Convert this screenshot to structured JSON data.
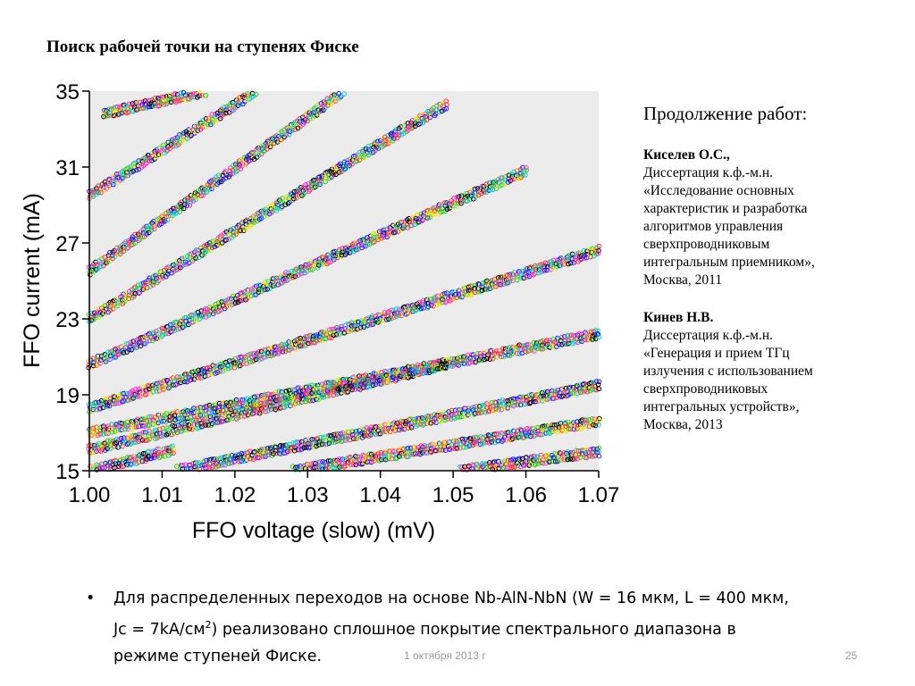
{
  "slide": {
    "title": "Поиск рабочей точки на ступенях Фиске",
    "footer_date": "1 октября 2013 г",
    "page_number": "25"
  },
  "sidebar": {
    "heading": "Продолжение работ:",
    "works": [
      {
        "author": "Киселев О.С.,",
        "lines": [
          "Диссертация к.ф.-м.н.",
          "«Исследование основных",
          "характеристик и разработка",
          "алгоритмов управления",
          "сверхпроводниковым",
          "интегральным приемником»,",
          "Москва, 2011"
        ]
      },
      {
        "author": "Кинев Н.В.",
        "lines": [
          "Диссертация к.ф.-м.н.",
          "«Генерация и прием ТГц",
          "излучения с использованием",
          "сверхпроводниковых",
          "интегральных устройств»,",
          "Москва, 2013"
        ]
      }
    ]
  },
  "bullet": {
    "symbol": "•",
    "line1": "Для распределенных переходов на основе Nb-AlN-NbN  (W = 16 мкм, L = 400 мкм,",
    "line2a": "Jc = 7kA/см",
    "line2sup": "2",
    "line2b": ") реализовано сплошное покрытие спектрального диапазона в",
    "line3": "режиме ступеней Фиске."
  },
  "chart_data": {
    "type": "scatter",
    "xlabel": "FFO voltage (slow) (mV)",
    "ylabel": "FFO current (mA)",
    "xlim": [
      1.0,
      1.07
    ],
    "ylim": [
      15,
      35
    ],
    "x_ticks": [
      "1.00",
      "1.01",
      "1.02",
      "1.03",
      "1.04",
      "1.05",
      "1.06",
      "1.07"
    ],
    "y_ticks": [
      "15",
      "19",
      "23",
      "27",
      "31",
      "35"
    ],
    "grid": false,
    "background": "#ebebeb",
    "marker": "hollow circle",
    "series_colors": [
      "#000000",
      "#1a1aff",
      "#ff2bd6",
      "#2ec82e",
      "#00d0d0",
      "#e6e600",
      "#ff3030"
    ],
    "fiske_steps": [
      {
        "x": [
          1.0,
          1.0115
        ],
        "y": [
          15.0,
          16.1
        ]
      },
      {
        "x": [
          1.0,
          1.049
        ],
        "y": [
          16.1,
          20.6
        ]
      },
      {
        "x": [
          1.0,
          1.07
        ],
        "y": [
          17.0,
          22.2
        ]
      },
      {
        "x": [
          1.0,
          1.07
        ],
        "y": [
          18.3,
          26.6
        ]
      },
      {
        "x": [
          1.0,
          1.06
        ],
        "y": [
          20.6,
          30.8
        ]
      },
      {
        "x": [
          1.0,
          1.049
        ],
        "y": [
          23.0,
          34.3
        ]
      },
      {
        "x": [
          1.0,
          1.035
        ],
        "y": [
          25.5,
          35.0
        ]
      },
      {
        "x": [
          1.0,
          1.023
        ],
        "y": [
          29.5,
          35.0
        ]
      },
      {
        "x": [
          1.002,
          1.016
        ],
        "y": [
          33.8,
          35.0
        ]
      },
      {
        "x": [
          1.012,
          1.07
        ],
        "y": [
          15.0,
          19.5
        ]
      },
      {
        "x": [
          1.028,
          1.07
        ],
        "y": [
          15.0,
          17.6
        ]
      },
      {
        "x": [
          1.051,
          1.07
        ],
        "y": [
          15.0,
          16.0
        ]
      }
    ]
  }
}
